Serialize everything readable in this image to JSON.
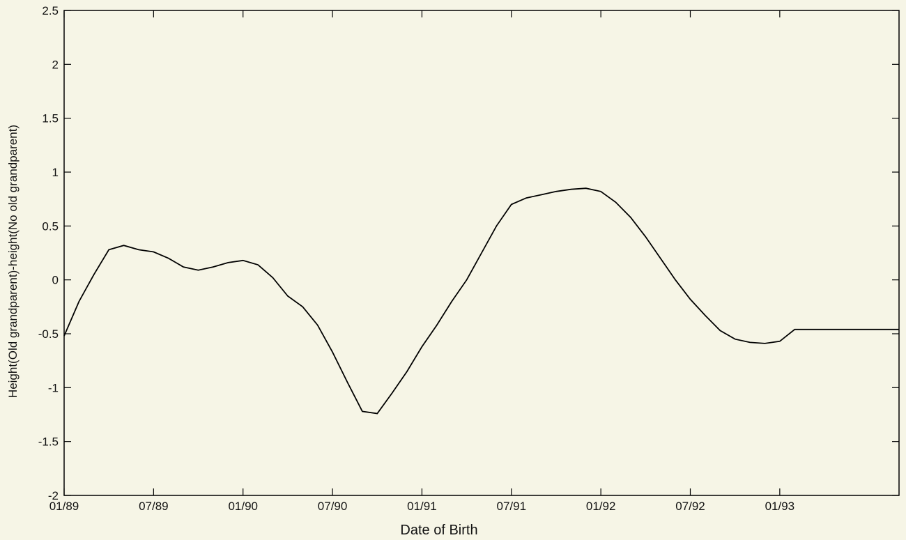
{
  "chart_data": {
    "type": "line",
    "xlabel": "Date of Birth",
    "ylabel": "Height(Old grandparent)-height(No old grandparent)",
    "xlim": [
      "01/89",
      "09/93"
    ],
    "ylim": [
      -2,
      2.5
    ],
    "yticks": [
      -2,
      -1.5,
      -1,
      -0.5,
      0,
      0.5,
      1,
      1.5,
      2,
      2.5
    ],
    "xticks": [
      "01/89",
      "07/89",
      "01/90",
      "07/90",
      "01/91",
      "07/91",
      "01/92",
      "07/92",
      "01/93"
    ],
    "grid": false,
    "series": [
      {
        "x": [
          "01/89",
          "02/89",
          "03/89",
          "04/89",
          "05/89",
          "06/89",
          "07/89",
          "08/89",
          "09/89",
          "10/89",
          "11/89",
          "12/89",
          "01/90",
          "02/90",
          "03/90",
          "04/90",
          "05/90",
          "06/90",
          "07/90",
          "08/90",
          "09/90",
          "10/90",
          "11/90",
          "12/90",
          "01/91",
          "02/91",
          "03/91",
          "04/91",
          "05/91",
          "06/91",
          "07/91",
          "08/91",
          "09/91",
          "10/91",
          "11/91",
          "12/91",
          "01/92",
          "02/92",
          "03/92",
          "04/92",
          "05/92",
          "06/92",
          "07/92",
          "08/92",
          "09/92",
          "10/92",
          "11/92",
          "12/92",
          "01/93",
          "02/93",
          "03/93",
          "04/93",
          "05/93",
          "06/93",
          "07/93",
          "08/93",
          "09/93"
        ],
        "values": [
          -0.52,
          -0.2,
          0.05,
          0.28,
          0.32,
          0.28,
          0.26,
          0.2,
          0.12,
          0.09,
          0.12,
          0.16,
          0.18,
          0.14,
          0.02,
          -0.15,
          -0.25,
          -0.42,
          -0.67,
          -0.95,
          -1.22,
          -1.24,
          -1.05,
          -0.85,
          -0.62,
          -0.42,
          -0.2,
          0.0,
          0.25,
          0.5,
          0.7,
          0.76,
          0.79,
          0.82,
          0.84,
          0.85,
          0.82,
          0.72,
          0.58,
          0.4,
          0.2,
          0.0,
          -0.18,
          -0.33,
          -0.47,
          -0.55,
          -0.58,
          -0.59,
          -0.57,
          -0.46,
          -0.46,
          -0.46,
          -0.46,
          -0.46,
          -0.46,
          -0.46,
          -0.46
        ]
      }
    ]
  }
}
